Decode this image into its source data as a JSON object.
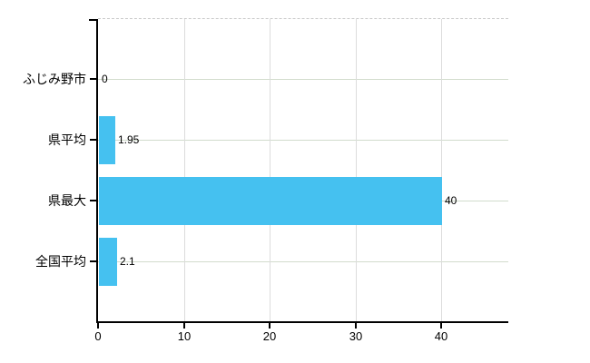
{
  "chart_data": {
    "type": "bar",
    "orientation": "horizontal",
    "title": "",
    "categories": [
      "ふじみ野市",
      "県平均",
      "県最大",
      "全国平均"
    ],
    "values": [
      0,
      1.95,
      40,
      2.1
    ],
    "value_labels": [
      "0",
      "1.95",
      "40",
      "2.1"
    ],
    "x_ticks": [
      0,
      10,
      20,
      30,
      40
    ],
    "x_tick_labels": [
      "0",
      "10",
      "20",
      "30",
      "40"
    ],
    "xlim": [
      0,
      47.8
    ],
    "grid": true,
    "legend": false,
    "colors": {
      "bar": "#45c1f0",
      "h_gridline": "#d2dccd",
      "v_gridline": "#dcdcdc",
      "plot_border_dashed": "#c9c9c9",
      "axis": "#000000",
      "text": "#000000",
      "background": "#ffffff"
    }
  }
}
